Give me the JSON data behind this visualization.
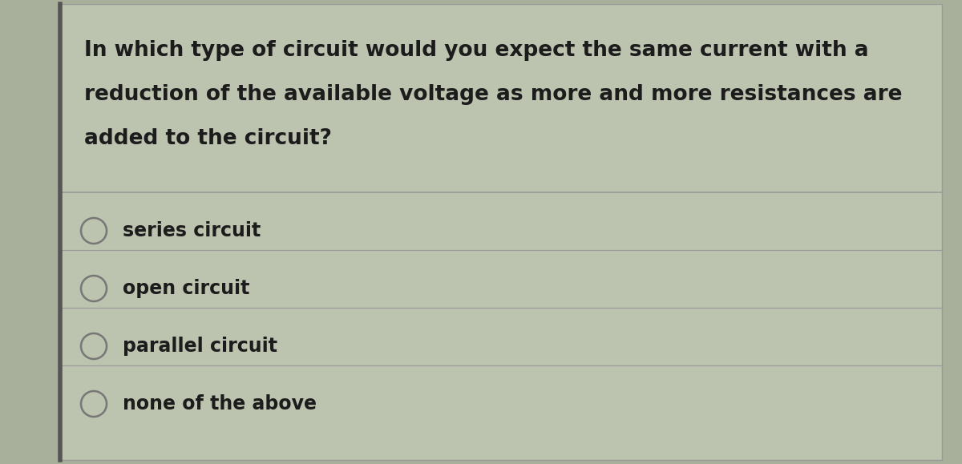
{
  "question_lines": [
    "In which type of circuit would you expect the same current with a",
    "reduction of the available voltage as more and more resistances are",
    "added to the circuit?"
  ],
  "options": [
    "series circuit",
    "open circuit",
    "parallel circuit",
    "none of the above"
  ],
  "bg_color": "#b8bfaa",
  "card_bg": "#bcc3ae",
  "outer_bg": "#a8af9a",
  "border_color": "#999999",
  "left_border_color": "#555555",
  "text_color": "#1c1c1c",
  "question_fontsize": 19,
  "option_fontsize": 17,
  "radio_color": "#777777",
  "line_color": "#999999",
  "fig_width": 12.0,
  "fig_height": 5.79
}
